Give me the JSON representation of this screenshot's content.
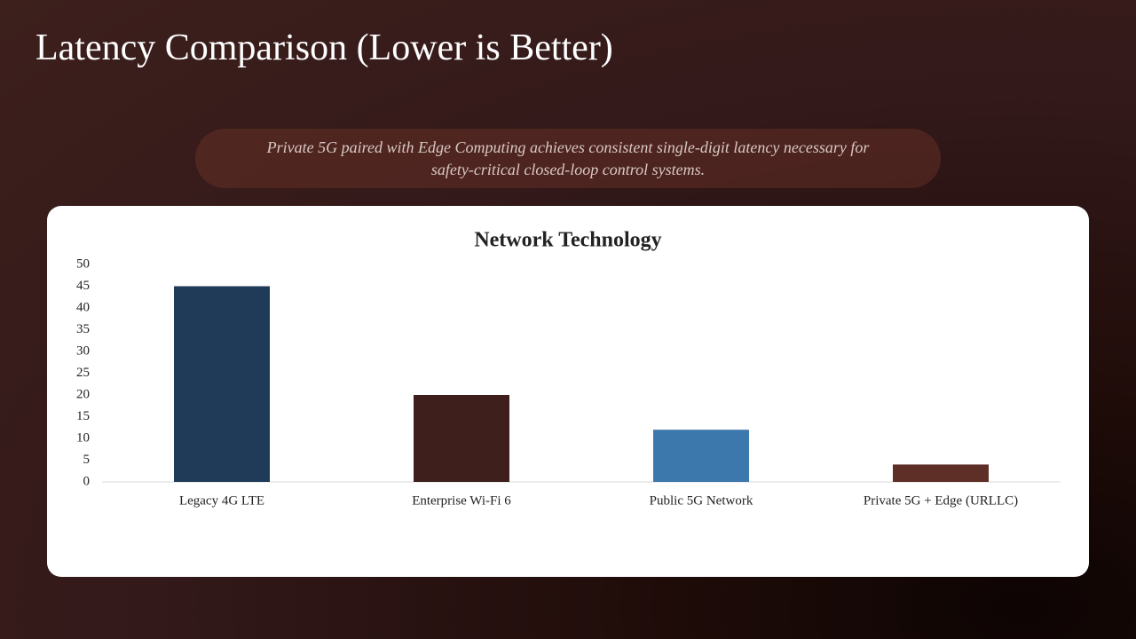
{
  "title": "Latency Comparison (Lower is Better)",
  "subtitle": "Private 5G paired with Edge Computing achieves consistent single-digit latency necessary for safety-critical closed-loop control systems.",
  "chart_data": {
    "type": "bar",
    "title": "Network Technology",
    "categories": [
      "Legacy 4G LTE",
      "Enterprise Wi-Fi 6",
      "Public 5G Network",
      "Private 5G + Edge (URLLC)"
    ],
    "values": [
      45,
      20,
      12,
      4
    ],
    "colors": [
      "#1f3b57",
      "#3e1f1c",
      "#3c78ab",
      "#5e2f27"
    ],
    "ylim": [
      0,
      50
    ],
    "yticks": [
      0,
      5,
      10,
      15,
      20,
      25,
      30,
      35,
      40,
      45,
      50
    ],
    "grid": false
  }
}
